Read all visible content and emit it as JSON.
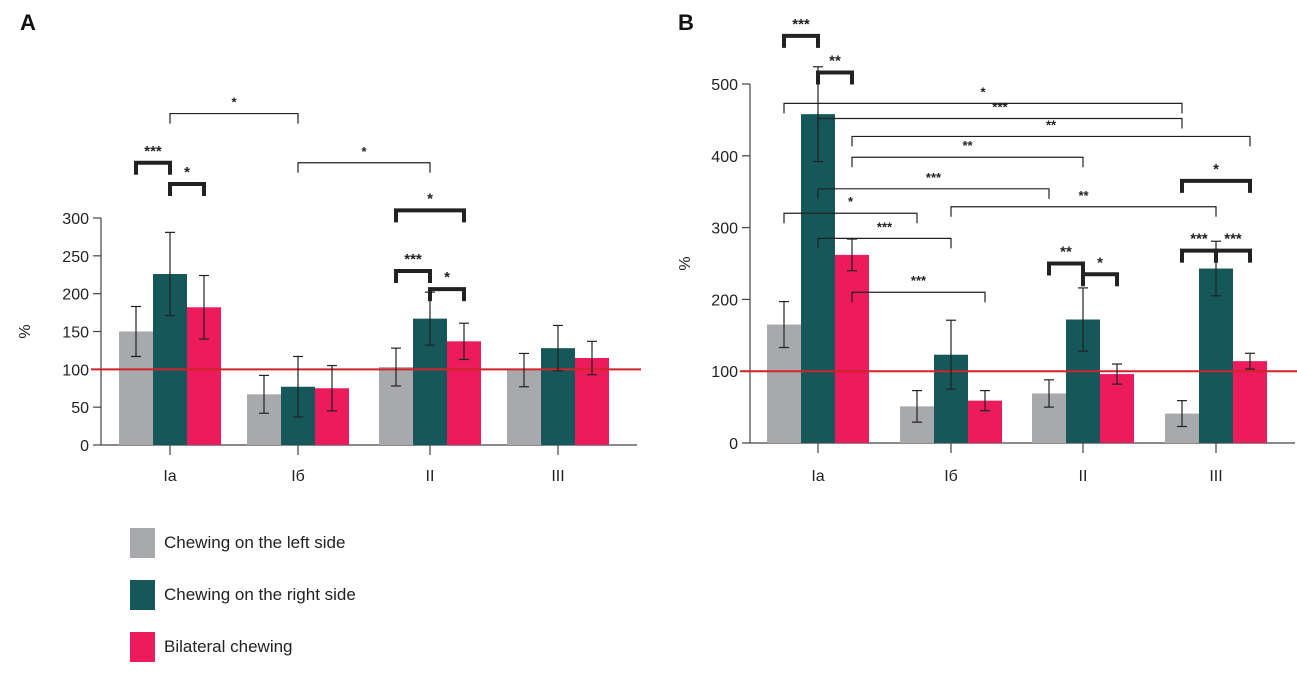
{
  "colors": {
    "left": "#a7a9ac",
    "right": "#16585a",
    "bilateral": "#ec1b5b",
    "reference_line": "#d1232a",
    "axis": "#444444"
  },
  "legend": {
    "items": [
      {
        "label": "Chewing on the left side",
        "color": "#a7a9ac"
      },
      {
        "label": "Chewing on the right side",
        "color": "#16585a"
      },
      {
        "label": "Bilateral chewing",
        "color": "#ec1b5b"
      }
    ]
  },
  "chart_data": [
    {
      "panel": "A",
      "type": "bar",
      "ylabel": "%",
      "ylim": [
        0,
        300
      ],
      "yticks": [
        0,
        50,
        100,
        150,
        200,
        250,
        300
      ],
      "reference_line": 100,
      "categories": [
        "Ia",
        "Iб",
        "II",
        "III"
      ],
      "series": [
        {
          "name": "Chewing on the left side",
          "values": [
            150,
            67,
            103,
            99
          ],
          "err": [
            33,
            25,
            25,
            22
          ]
        },
        {
          "name": "Chewing on the right side",
          "values": [
            226,
            77,
            167,
            128
          ],
          "err": [
            55,
            40,
            35,
            30
          ]
        },
        {
          "name": "Bilateral chewing",
          "values": [
            182,
            75,
            137,
            115
          ],
          "err": [
            42,
            30,
            24,
            22
          ]
        }
      ],
      "annotations": [
        {
          "label": "***",
          "from": [
            0,
            0
          ],
          "to": [
            0,
            1
          ],
          "yv": 373,
          "thick": true
        },
        {
          "label": "*",
          "from": [
            0,
            1
          ],
          "to": [
            0,
            2
          ],
          "yv": 345,
          "thick": true
        },
        {
          "label": "*",
          "from": [
            0,
            1
          ],
          "to": [
            1,
            1
          ],
          "yv": 438,
          "thick": false
        },
        {
          "label": "*",
          "from": [
            1,
            1
          ],
          "to": [
            2,
            1
          ],
          "yv": 373,
          "thick": false
        },
        {
          "label": "*",
          "from": [
            2,
            0
          ],
          "to": [
            2,
            2
          ],
          "yv": 310,
          "thick": true
        },
        {
          "label": "***",
          "from": [
            2,
            0
          ],
          "to": [
            2,
            1
          ],
          "yv": 230,
          "thick": true
        },
        {
          "label": "*",
          "from": [
            2,
            1
          ],
          "to": [
            2,
            2
          ],
          "yv": 206,
          "thick": true
        }
      ]
    },
    {
      "panel": "B",
      "type": "bar",
      "ylabel": "%",
      "ylim": [
        0,
        500
      ],
      "yticks": [
        0,
        100,
        200,
        300,
        400,
        500
      ],
      "reference_line": 100,
      "categories": [
        "Ia",
        "Iб",
        "II",
        "III"
      ],
      "series": [
        {
          "name": "Chewing on the left side",
          "values": [
            165,
            51,
            69,
            41
          ],
          "err": [
            32,
            22,
            19,
            18
          ]
        },
        {
          "name": "Chewing on the right side",
          "values": [
            458,
            123,
            172,
            243
          ],
          "err": [
            66,
            48,
            44,
            38
          ]
        },
        {
          "name": "Bilateral chewing",
          "values": [
            262,
            59,
            96,
            114
          ],
          "err": [
            22,
            14,
            14,
            11
          ]
        }
      ],
      "annotations": [
        {
          "label": "***",
          "from": [
            0,
            0
          ],
          "to": [
            0,
            1
          ],
          "yv": 567,
          "thick": true
        },
        {
          "label": "**",
          "from": [
            0,
            1
          ],
          "to": [
            0,
            2
          ],
          "yv": 516,
          "thick": true
        },
        {
          "label": "*",
          "from": [
            0,
            0
          ],
          "to": [
            3,
            0
          ],
          "yv": 473,
          "thick": false
        },
        {
          "label": "***",
          "from": [
            0,
            1
          ],
          "to": [
            3,
            0
          ],
          "yv": 452,
          "thick": false
        },
        {
          "label": "**",
          "from": [
            0,
            2
          ],
          "to": [
            3,
            2
          ],
          "yv": 427,
          "thick": false
        },
        {
          "label": "**",
          "from": [
            0,
            2
          ],
          "to": [
            2,
            1
          ],
          "yv": 398,
          "thick": false
        },
        {
          "label": "***",
          "from": [
            0,
            1
          ],
          "to": [
            2,
            0
          ],
          "yv": 354,
          "thick": false
        },
        {
          "label": "**",
          "from": [
            1,
            1
          ],
          "to": [
            3,
            1
          ],
          "yv": 329,
          "thick": false
        },
        {
          "label": "*",
          "from": [
            0,
            0
          ],
          "to": [
            1,
            0
          ],
          "yv": 320,
          "thick": false
        },
        {
          "label": "***",
          "from": [
            0,
            1
          ],
          "to": [
            1,
            1
          ],
          "yv": 285,
          "thick": false
        },
        {
          "label": "***",
          "from": [
            0,
            2
          ],
          "to": [
            1,
            2
          ],
          "yv": 210,
          "thick": false
        },
        {
          "label": "**",
          "from": [
            2,
            0
          ],
          "to": [
            2,
            1
          ],
          "yv": 250,
          "thick": true
        },
        {
          "label": "*",
          "from": [
            2,
            1
          ],
          "to": [
            2,
            2
          ],
          "yv": 235,
          "thick": true
        },
        {
          "label": "*",
          "from": [
            3,
            0
          ],
          "to": [
            3,
            2
          ],
          "yv": 365,
          "thick": true
        },
        {
          "label": "***",
          "from": [
            3,
            0
          ],
          "to": [
            3,
            1
          ],
          "yv": 268,
          "thick": true
        },
        {
          "label": "***",
          "from": [
            3,
            1
          ],
          "to": [
            3,
            2
          ],
          "yv": 268,
          "thick": true
        }
      ]
    }
  ]
}
